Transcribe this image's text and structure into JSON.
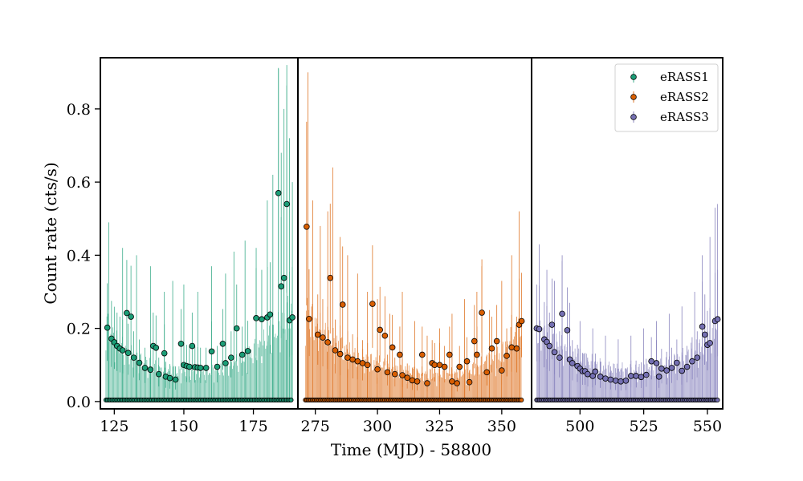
{
  "chart_data": {
    "type": "scatter",
    "xlabel": "Time (MJD) - 58800",
    "ylabel": "Count rate (cts/s)",
    "ylim": [
      -0.02,
      0.94
    ],
    "yticks": [
      0.0,
      0.2,
      0.4,
      0.6,
      0.8
    ],
    "ytick_labels": [
      "0.0",
      "0.2",
      "0.4",
      "0.6",
      "0.8"
    ],
    "grid": false,
    "legend": {
      "placement": "top-right",
      "entries": [
        {
          "label": "eRASS1",
          "color": "#1b9e77"
        },
        {
          "label": "eRASS2",
          "color": "#d95f02"
        },
        {
          "label": "eRASS3",
          "color": "#7570b3"
        }
      ]
    },
    "panels": [
      {
        "name": "eRASS1",
        "color": "#1b9e77",
        "xlim": [
          120,
          191
        ],
        "xticks": [
          125,
          150,
          175
        ],
        "xtick_labels": [
          "125",
          "150",
          "175"
        ],
        "t_start": 122,
        "t_end": 189,
        "floor_value": 0.004,
        "highlight_points": [
          [
            122.5,
            0.202
          ],
          [
            124,
            0.172
          ],
          [
            125,
            0.162
          ],
          [
            126,
            0.152
          ],
          [
            127,
            0.145
          ],
          [
            128,
            0.14
          ],
          [
            129.5,
            0.242
          ],
          [
            131,
            0.232
          ],
          [
            130,
            0.133
          ],
          [
            132,
            0.12
          ],
          [
            134,
            0.106
          ],
          [
            136,
            0.092
          ],
          [
            138,
            0.087
          ],
          [
            139,
            0.152
          ],
          [
            140,
            0.147
          ],
          [
            141,
            0.075
          ],
          [
            143,
            0.132
          ],
          [
            143.5,
            0.068
          ],
          [
            145,
            0.064
          ],
          [
            147,
            0.06
          ],
          [
            149,
            0.158
          ],
          [
            150,
            0.1
          ],
          [
            151,
            0.097
          ],
          [
            152,
            0.095
          ],
          [
            153,
            0.152
          ],
          [
            154,
            0.094
          ],
          [
            155,
            0.093
          ],
          [
            156,
            0.092
          ],
          [
            158,
            0.092
          ],
          [
            160,
            0.137
          ],
          [
            162,
            0.095
          ],
          [
            164,
            0.158
          ],
          [
            165,
            0.105
          ],
          [
            167,
            0.12
          ],
          [
            169,
            0.2
          ],
          [
            171,
            0.128
          ],
          [
            173,
            0.138
          ],
          [
            176,
            0.228
          ],
          [
            178,
            0.225
          ],
          [
            180,
            0.23
          ],
          [
            181,
            0.238
          ],
          [
            184,
            0.57
          ],
          [
            185,
            0.315
          ],
          [
            186,
            0.338
          ],
          [
            187,
            0.54
          ],
          [
            188,
            0.222
          ],
          [
            189,
            0.23
          ]
        ],
        "band_points": [
          [
            122,
            0.05
          ],
          [
            125,
            0.04
          ],
          [
            130,
            0.031
          ],
          [
            135,
            0.026
          ],
          [
            140,
            0.022
          ],
          [
            145,
            0.02
          ],
          [
            150,
            0.019
          ],
          [
            155,
            0.019
          ],
          [
            160,
            0.02
          ],
          [
            165,
            0.023
          ],
          [
            170,
            0.027
          ],
          [
            175,
            0.033
          ],
          [
            180,
            0.04
          ],
          [
            185,
            0.05
          ],
          [
            189,
            0.062
          ]
        ],
        "spikes": [
          [
            123,
            0.49
          ],
          [
            128,
            0.42
          ],
          [
            133,
            0.4
          ],
          [
            138,
            0.37
          ],
          [
            143,
            0.3
          ],
          [
            146,
            0.33
          ],
          [
            150,
            0.32
          ],
          [
            155,
            0.3
          ],
          [
            160,
            0.37
          ],
          [
            165,
            0.35
          ],
          [
            168,
            0.41
          ],
          [
            172,
            0.44
          ],
          [
            176,
            0.42
          ],
          [
            180,
            0.55
          ],
          [
            182,
            0.62
          ],
          [
            184,
            0.91
          ],
          [
            185,
            0.68
          ],
          [
            186,
            0.8
          ],
          [
            187,
            0.92
          ],
          [
            188,
            0.72
          ],
          [
            189,
            0.6
          ]
        ]
      },
      {
        "name": "eRASS2",
        "color": "#d95f02",
        "xlim": [
          268,
          362
        ],
        "xticks": [
          275,
          300,
          325,
          350
        ],
        "xtick_labels": [
          "275",
          "300",
          "325",
          "350"
        ],
        "t_start": 271,
        "t_end": 358,
        "floor_value": 0.004,
        "highlight_points": [
          [
            271.5,
            0.478
          ],
          [
            272.5,
            0.226
          ],
          [
            276,
            0.183
          ],
          [
            278,
            0.175
          ],
          [
            280,
            0.162
          ],
          [
            281,
            0.338
          ],
          [
            283,
            0.14
          ],
          [
            285,
            0.13
          ],
          [
            286,
            0.265
          ],
          [
            288,
            0.12
          ],
          [
            290,
            0.115
          ],
          [
            292,
            0.11
          ],
          [
            294,
            0.105
          ],
          [
            296,
            0.1
          ],
          [
            298,
            0.267
          ],
          [
            300,
            0.088
          ],
          [
            301,
            0.196
          ],
          [
            303,
            0.18
          ],
          [
            304,
            0.08
          ],
          [
            306,
            0.148
          ],
          [
            307,
            0.075
          ],
          [
            309,
            0.128
          ],
          [
            310,
            0.072
          ],
          [
            312,
            0.065
          ],
          [
            314,
            0.058
          ],
          [
            316,
            0.055
          ],
          [
            318,
            0.128
          ],
          [
            320,
            0.05
          ],
          [
            322,
            0.105
          ],
          [
            323,
            0.1
          ],
          [
            325,
            0.1
          ],
          [
            327,
            0.095
          ],
          [
            329,
            0.128
          ],
          [
            330,
            0.055
          ],
          [
            332,
            0.05
          ],
          [
            333,
            0.095
          ],
          [
            336,
            0.11
          ],
          [
            337,
            0.053
          ],
          [
            339,
            0.165
          ],
          [
            340,
            0.128
          ],
          [
            342,
            0.243
          ],
          [
            344,
            0.08
          ],
          [
            346,
            0.145
          ],
          [
            348,
            0.165
          ],
          [
            350,
            0.085
          ],
          [
            352,
            0.125
          ],
          [
            354,
            0.148
          ],
          [
            356,
            0.145
          ],
          [
            357,
            0.21
          ],
          [
            358,
            0.22
          ]
        ],
        "band_points": [
          [
            271,
            0.06
          ],
          [
            275,
            0.05
          ],
          [
            280,
            0.042
          ],
          [
            285,
            0.036
          ],
          [
            290,
            0.03
          ],
          [
            300,
            0.025
          ],
          [
            310,
            0.02
          ],
          [
            320,
            0.018
          ],
          [
            330,
            0.018
          ],
          [
            340,
            0.022
          ],
          [
            350,
            0.032
          ],
          [
            358,
            0.048
          ]
        ],
        "spikes": [
          [
            272,
            0.9
          ],
          [
            274,
            0.55
          ],
          [
            277,
            0.48
          ],
          [
            280,
            0.52
          ],
          [
            282,
            0.64
          ],
          [
            285,
            0.45
          ],
          [
            288,
            0.4
          ],
          [
            292,
            0.35
          ],
          [
            296,
            0.3
          ],
          [
            300,
            0.28
          ],
          [
            305,
            0.24
          ],
          [
            310,
            0.3
          ],
          [
            315,
            0.22
          ],
          [
            320,
            0.18
          ],
          [
            325,
            0.2
          ],
          [
            330,
            0.24
          ],
          [
            335,
            0.28
          ],
          [
            340,
            0.3
          ],
          [
            342,
            0.37
          ],
          [
            345,
            0.25
          ],
          [
            350,
            0.33
          ],
          [
            354,
            0.4
          ],
          [
            357,
            0.52
          ]
        ]
      },
      {
        "name": "eRASS3",
        "color": "#7570b3",
        "xlim": [
          481,
          556
        ],
        "xticks": [
          500,
          525,
          550
        ],
        "xtick_labels": [
          "500",
          "525",
          "550"
        ],
        "t_start": 483,
        "t_end": 554,
        "floor_value": 0.004,
        "highlight_points": [
          [
            483,
            0.2
          ],
          [
            484,
            0.198
          ],
          [
            486,
            0.17
          ],
          [
            487,
            0.163
          ],
          [
            488,
            0.152
          ],
          [
            489,
            0.21
          ],
          [
            490,
            0.135
          ],
          [
            492,
            0.12
          ],
          [
            493,
            0.24
          ],
          [
            495,
            0.195
          ],
          [
            496,
            0.115
          ],
          [
            497,
            0.105
          ],
          [
            499,
            0.097
          ],
          [
            500,
            0.09
          ],
          [
            501,
            0.083
          ],
          [
            502,
            0.083
          ],
          [
            503,
            0.075
          ],
          [
            505,
            0.07
          ],
          [
            506,
            0.082
          ],
          [
            508,
            0.068
          ],
          [
            510,
            0.063
          ],
          [
            512,
            0.06
          ],
          [
            514,
            0.057
          ],
          [
            516,
            0.055
          ],
          [
            518,
            0.057
          ],
          [
            520,
            0.07
          ],
          [
            522,
            0.07
          ],
          [
            524,
            0.067
          ],
          [
            526,
            0.073
          ],
          [
            528,
            0.11
          ],
          [
            530,
            0.105
          ],
          [
            531,
            0.068
          ],
          [
            532,
            0.09
          ],
          [
            534,
            0.085
          ],
          [
            536,
            0.092
          ],
          [
            538,
            0.106
          ],
          [
            540,
            0.084
          ],
          [
            542,
            0.095
          ],
          [
            544,
            0.11
          ],
          [
            546,
            0.12
          ],
          [
            548,
            0.205
          ],
          [
            549,
            0.183
          ],
          [
            550,
            0.155
          ],
          [
            551,
            0.16
          ],
          [
            553,
            0.22
          ],
          [
            554,
            0.225
          ]
        ],
        "band_points": [
          [
            483,
            0.048
          ],
          [
            490,
            0.038
          ],
          [
            500,
            0.028
          ],
          [
            510,
            0.022
          ],
          [
            520,
            0.02
          ],
          [
            530,
            0.022
          ],
          [
            540,
            0.028
          ],
          [
            548,
            0.036
          ],
          [
            554,
            0.048
          ]
        ],
        "spikes": [
          [
            484,
            0.43
          ],
          [
            487,
            0.36
          ],
          [
            490,
            0.33
          ],
          [
            493,
            0.4
          ],
          [
            496,
            0.27
          ],
          [
            500,
            0.22
          ],
          [
            505,
            0.2
          ],
          [
            510,
            0.18
          ],
          [
            515,
            0.17
          ],
          [
            520,
            0.18
          ],
          [
            525,
            0.2
          ],
          [
            530,
            0.22
          ],
          [
            535,
            0.24
          ],
          [
            540,
            0.26
          ],
          [
            545,
            0.3
          ],
          [
            548,
            0.4
          ],
          [
            551,
            0.45
          ],
          [
            553,
            0.53
          ],
          [
            554,
            0.54
          ]
        ]
      }
    ]
  }
}
